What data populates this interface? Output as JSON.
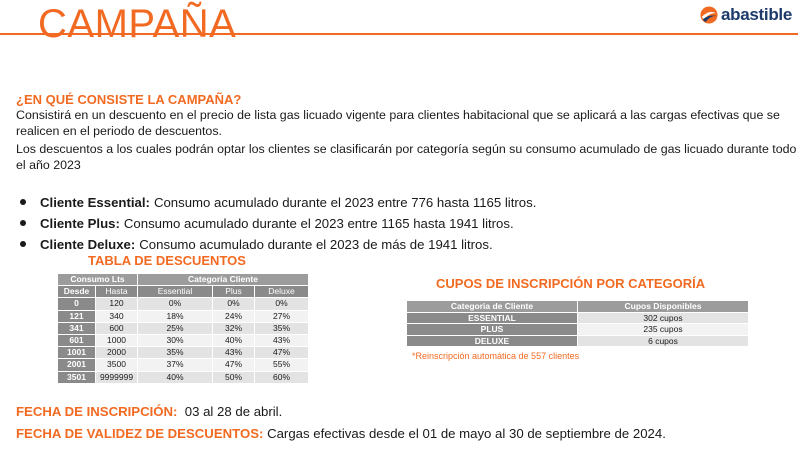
{
  "header": {
    "title": "CAMPAÑA",
    "logo_text": "abastible",
    "colors": {
      "accent": "#f26a21",
      "logo_blue": "#1d3a6b"
    }
  },
  "intro": {
    "heading": "¿EN QUÉ CONSISTE LA CAMPAÑA?",
    "paragraph1": "Consistirá en un descuento en el precio de lista gas licuado vigente para clientes habitacional que se aplicará a las cargas efectivas que se realicen en el periodo de descuentos.",
    "paragraph2": "Los descuentos a los cuales podrán optar los clientes se clasificarán por categoría según su consumo acumulado de gas licuado durante todo el año 2023"
  },
  "categories": [
    {
      "label": "Cliente Essential:",
      "text": "Consumo acumulado durante el 2023 entre 776 hasta 1165 litros."
    },
    {
      "label": "Cliente Plus:",
      "text": "Consumo acumulado durante el 2023 entre 1165 hasta 1941 litros."
    },
    {
      "label": "Cliente Deluxe:",
      "text": "Consumo acumulado durante el 2023 de más de 1941 litros."
    }
  ],
  "discount_table": {
    "title": "TABLA DE DESCUENTOS",
    "group_headers": [
      "Consumo Lts",
      "Categoría Cliente"
    ],
    "columns": [
      "Desde",
      "Hasta",
      "Essential",
      "Plus",
      "Deluxe"
    ],
    "rows": [
      [
        "0",
        "120",
        "0%",
        "0%",
        "0%"
      ],
      [
        "121",
        "340",
        "18%",
        "24%",
        "27%"
      ],
      [
        "341",
        "600",
        "25%",
        "32%",
        "35%"
      ],
      [
        "601",
        "1000",
        "30%",
        "40%",
        "43%"
      ],
      [
        "1001",
        "2000",
        "35%",
        "43%",
        "47%"
      ],
      [
        "2001",
        "3500",
        "37%",
        "47%",
        "55%"
      ],
      [
        "3501",
        "9999999",
        "40%",
        "50%",
        "60%"
      ]
    ]
  },
  "quota_table": {
    "title": "CUPOS DE INSCRIPCIÓN POR CATEGORÍA",
    "columns": [
      "Categoria de Cliente",
      "Cupos Disponibles"
    ],
    "rows": [
      [
        "ESSENTIAL",
        "302 cupos"
      ],
      [
        "PLUS",
        "235 cupos"
      ],
      [
        "DELUXE",
        "6 cupos"
      ]
    ],
    "note": "*Reinscripción automática de 557 clientes"
  },
  "dates": {
    "registration_label": "FECHA DE INSCRIPCIÓN:",
    "registration_value": "03 al 28 de abril.",
    "validity_label": "FECHA DE VALIDEZ DE DESCUENTOS:",
    "validity_value": "Cargas efectivas desde el 01 de mayo al 30 de septiembre de 2024."
  }
}
